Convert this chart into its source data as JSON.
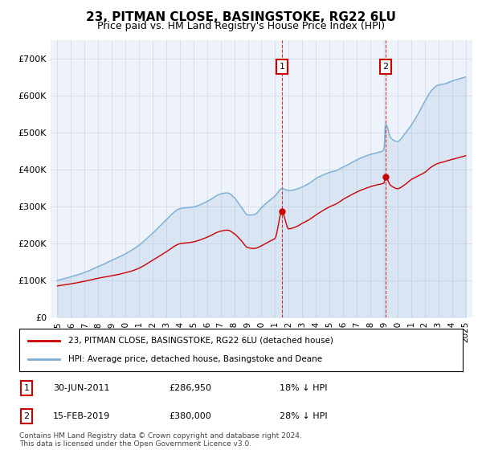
{
  "title": "23, PITMAN CLOSE, BASINGSTOKE, RG22 6LU",
  "subtitle": "Price paid vs. HM Land Registry's House Price Index (HPI)",
  "ylim": [
    0,
    750000
  ],
  "xlim_start": 1994.5,
  "xlim_end": 2025.5,
  "sale1_date": 2011.5,
  "sale1_price": 286950,
  "sale2_date": 2019.125,
  "sale2_price": 380000,
  "line_color_red": "#cc0000",
  "line_color_blue": "#7bafd4",
  "sale_marker_color": "#cc0000",
  "annotation_box_color": "#cc0000",
  "grid_color": "#d0d8e8",
  "bg_color": "#eef2fb",
  "legend_label_red": "23, PITMAN CLOSE, BASINGSTOKE, RG22 6LU (detached house)",
  "legend_label_blue": "HPI: Average price, detached house, Basingstoke and Deane",
  "footer_text": "Contains HM Land Registry data © Crown copyright and database right 2024.\nThis data is licensed under the Open Government Licence v3.0.",
  "x_ticks": [
    1995,
    1996,
    1997,
    1998,
    1999,
    2000,
    2001,
    2002,
    2003,
    2004,
    2005,
    2006,
    2007,
    2008,
    2009,
    2010,
    2011,
    2012,
    2013,
    2014,
    2015,
    2016,
    2017,
    2018,
    2019,
    2020,
    2021,
    2022,
    2023,
    2024,
    2025
  ]
}
